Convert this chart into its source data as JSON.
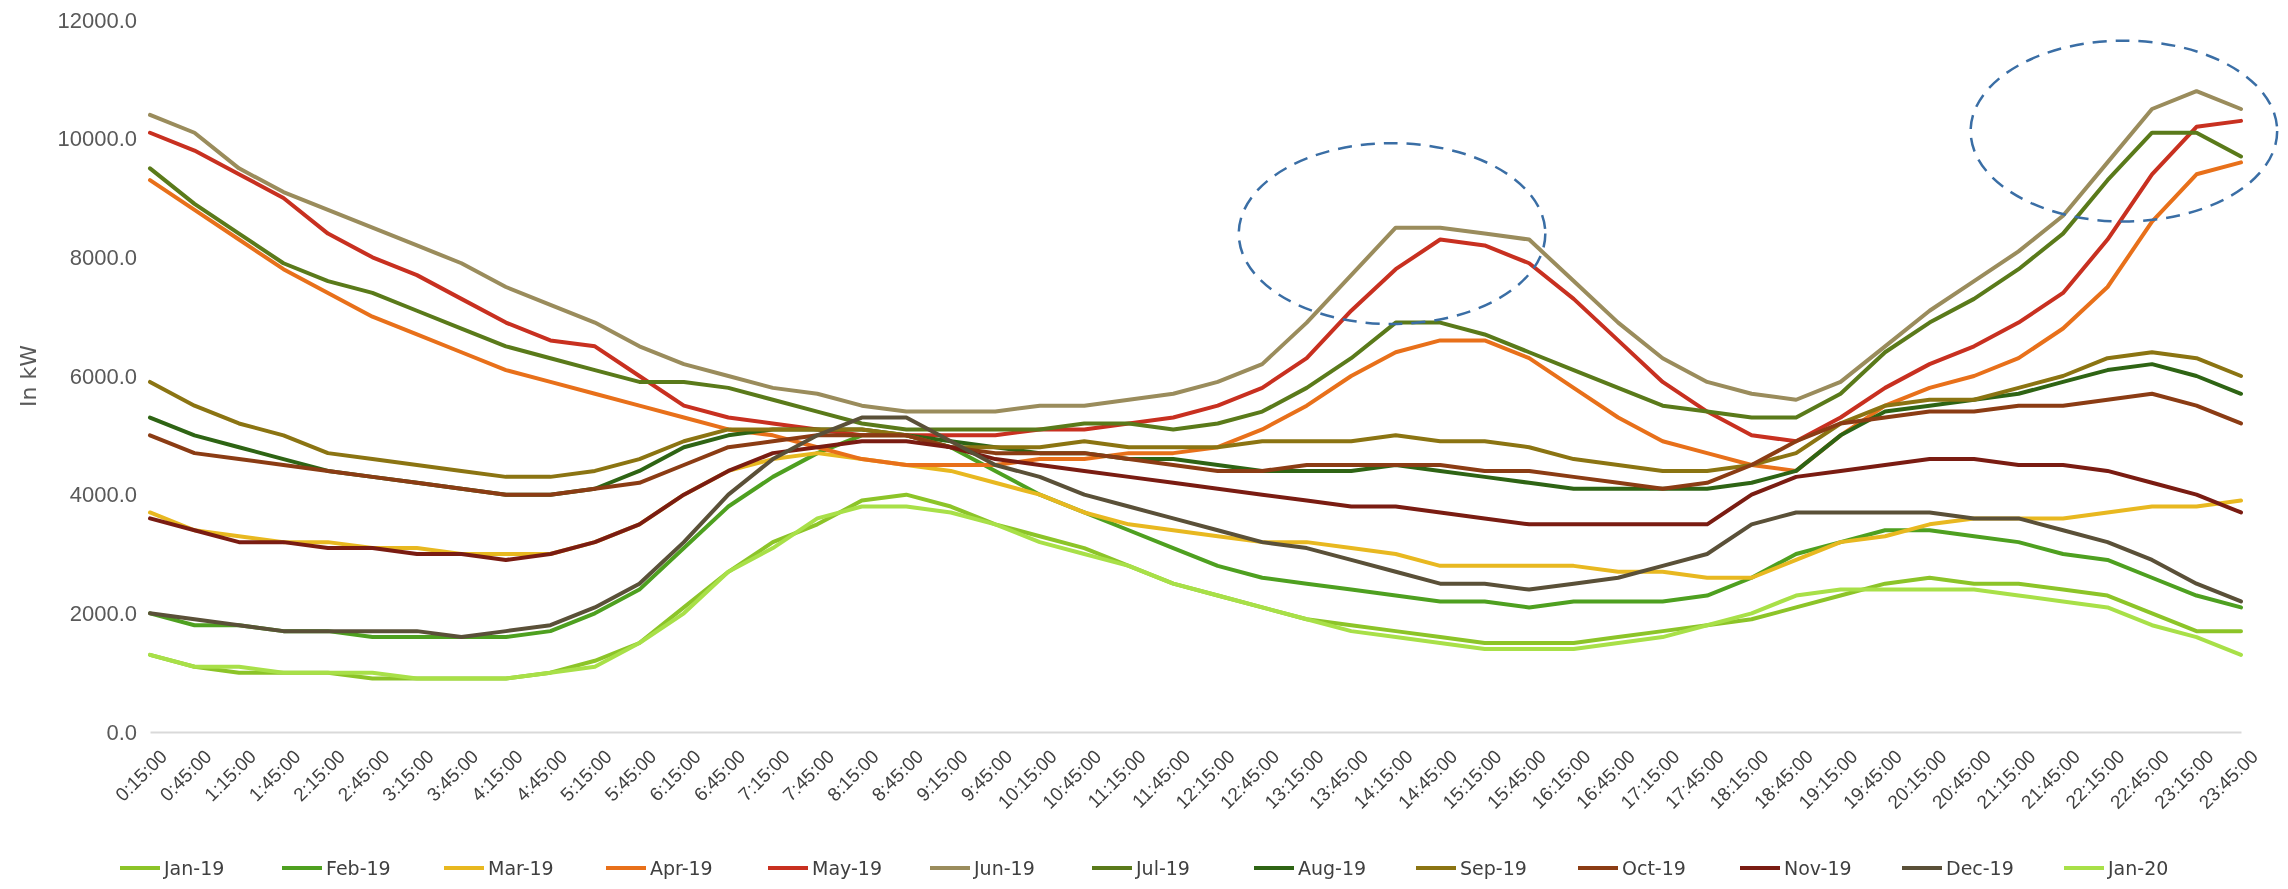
{
  "chart_data": {
    "type": "line",
    "ylabel": "In kW",
    "ylim": [
      0,
      12000
    ],
    "yticks": [
      {
        "value": 0,
        "label": "0.0"
      },
      {
        "value": 2000,
        "label": "2000.0"
      },
      {
        "value": 4000,
        "label": "4000.0"
      },
      {
        "value": 6000,
        "label": "6000.0"
      },
      {
        "value": 8000,
        "label": "8000.0"
      },
      {
        "value": 10000,
        "label": "10000.0"
      },
      {
        "value": 12000,
        "label": "12000.0"
      }
    ],
    "grid": false,
    "legend": "bottom",
    "marker": "none",
    "line_style": "solid",
    "categories": [
      "0:15:00",
      "0:45:00",
      "1:15:00",
      "1:45:00",
      "2:15:00",
      "2:45:00",
      "3:15:00",
      "3:45:00",
      "4:15:00",
      "4:45:00",
      "5:15:00",
      "5:45:00",
      "6:15:00",
      "6:45:00",
      "7:15:00",
      "7:45:00",
      "8:15:00",
      "8:45:00",
      "9:15:00",
      "9:45:00",
      "10:15:00",
      "10:45:00",
      "11:15:00",
      "11:45:00",
      "12:15:00",
      "12:45:00",
      "13:15:00",
      "13:45:00",
      "14:15:00",
      "14:45:00",
      "15:15:00",
      "15:45:00",
      "16:15:00",
      "16:45:00",
      "17:15:00",
      "17:45:00",
      "18:15:00",
      "18:45:00",
      "19:15:00",
      "19:45:00",
      "20:15:00",
      "20:45:00",
      "21:15:00",
      "21:45:00",
      "22:15:00",
      "22:45:00",
      "23:15:00",
      "23:45:00"
    ],
    "series": [
      {
        "name": "Jan-19",
        "color": "#8cc428",
        "values": [
          1300,
          1100,
          1000,
          1000,
          1000,
          900,
          900,
          900,
          900,
          1000,
          1200,
          1500,
          2100,
          2700,
          3200,
          3500,
          3900,
          4000,
          3800,
          3500,
          3300,
          3100,
          2800,
          2500,
          2300,
          2100,
          1900,
          1800,
          1700,
          1600,
          1500,
          1500,
          1500,
          1600,
          1700,
          1800,
          1900,
          2100,
          2300,
          2500,
          2600,
          2500,
          2500,
          2400,
          2300,
          2000,
          1700,
          1700
        ]
      },
      {
        "name": "Feb-19",
        "color": "#4ea020",
        "values": [
          2000,
          1800,
          1800,
          1700,
          1700,
          1600,
          1600,
          1600,
          1600,
          1700,
          2000,
          2400,
          3100,
          3800,
          4300,
          4700,
          5000,
          5000,
          4800,
          4400,
          4000,
          3700,
          3400,
          3100,
          2800,
          2600,
          2500,
          2400,
          2300,
          2200,
          2200,
          2100,
          2200,
          2200,
          2200,
          2300,
          2600,
          3000,
          3200,
          3400,
          3400,
          3300,
          3200,
          3000,
          2900,
          2600,
          2300,
          2100
        ]
      },
      {
        "name": "Mar-19",
        "color": "#e8b820",
        "values": [
          3700,
          3400,
          3300,
          3200,
          3200,
          3100,
          3100,
          3000,
          3000,
          3000,
          3200,
          3500,
          4000,
          4400,
          4600,
          4700,
          4600,
          4500,
          4400,
          4200,
          4000,
          3700,
          3500,
          3400,
          3300,
          3200,
          3200,
          3100,
          3000,
          2800,
          2800,
          2800,
          2800,
          2700,
          2700,
          2600,
          2600,
          2900,
          3200,
          3300,
          3500,
          3600,
          3600,
          3600,
          3700,
          3800,
          3800,
          3900
        ]
      },
      {
        "name": "Apr-19",
        "color": "#e8701a",
        "values": [
          9300,
          8800,
          8300,
          7800,
          7400,
          7000,
          6700,
          6400,
          6100,
          5900,
          5700,
          5500,
          5300,
          5100,
          5000,
          4800,
          4600,
          4500,
          4500,
          4500,
          4600,
          4600,
          4700,
          4700,
          4800,
          5100,
          5500,
          6000,
          6400,
          6600,
          6600,
          6300,
          5800,
          5300,
          4900,
          4700,
          4500,
          4400,
          5000,
          5500,
          5800,
          6000,
          6300,
          6800,
          7500,
          8600,
          9400,
          9600
        ]
      },
      {
        "name": "May-19",
        "color": "#c83020",
        "values": [
          10100,
          9800,
          9400,
          9000,
          8400,
          8000,
          7700,
          7300,
          6900,
          6600,
          6500,
          6000,
          5500,
          5300,
          5200,
          5100,
          5000,
          5000,
          5000,
          5000,
          5100,
          5100,
          5200,
          5300,
          5500,
          5800,
          6300,
          7100,
          7800,
          8300,
          8200,
          7900,
          7300,
          6600,
          5900,
          5400,
          5000,
          4900,
          5300,
          5800,
          6200,
          6500,
          6900,
          7400,
          8300,
          9400,
          10200,
          10300
        ]
      },
      {
        "name": "Jun-19",
        "color": "#9a8c5c",
        "values": [
          10400,
          10100,
          9500,
          9100,
          8800,
          8500,
          8200,
          7900,
          7500,
          7200,
          6900,
          6500,
          6200,
          6000,
          5800,
          5700,
          5500,
          5400,
          5400,
          5400,
          5500,
          5500,
          5600,
          5700,
          5900,
          6200,
          6900,
          7700,
          8500,
          8500,
          8400,
          8300,
          7600,
          6900,
          6300,
          5900,
          5700,
          5600,
          5900,
          6500,
          7100,
          7600,
          8100,
          8700,
          9600,
          10500,
          10800,
          10500
        ]
      },
      {
        "name": "Jul-19",
        "color": "#5a7a1a",
        "values": [
          9500,
          8900,
          8400,
          7900,
          7600,
          7400,
          7100,
          6800,
          6500,
          6300,
          6100,
          5900,
          5900,
          5800,
          5600,
          5400,
          5200,
          5100,
          5100,
          5100,
          5100,
          5200,
          5200,
          5100,
          5200,
          5400,
          5800,
          6300,
          6900,
          6900,
          6700,
          6400,
          6100,
          5800,
          5500,
          5400,
          5300,
          5300,
          5700,
          6400,
          6900,
          7300,
          7800,
          8400,
          9300,
          10100,
          10100,
          9700
        ]
      },
      {
        "name": "Aug-19",
        "color": "#2e6414",
        "values": [
          5300,
          5000,
          4800,
          4600,
          4400,
          4300,
          4200,
          4100,
          4000,
          4000,
          4100,
          4400,
          4800,
          5000,
          5100,
          5100,
          5100,
          5000,
          4900,
          4800,
          4700,
          4700,
          4600,
          4600,
          4500,
          4400,
          4400,
          4400,
          4500,
          4400,
          4300,
          4200,
          4100,
          4100,
          4100,
          4100,
          4200,
          4400,
          5000,
          5400,
          5500,
          5600,
          5700,
          5900,
          6100,
          6200,
          6000,
          5700
        ]
      },
      {
        "name": "Sep-19",
        "color": "#8b7412",
        "values": [
          5900,
          5500,
          5200,
          5000,
          4700,
          4600,
          4500,
          4400,
          4300,
          4300,
          4400,
          4600,
          4900,
          5100,
          5100,
          5100,
          5100,
          5000,
          4800,
          4800,
          4800,
          4900,
          4800,
          4800,
          4800,
          4900,
          4900,
          4900,
          5000,
          4900,
          4900,
          4800,
          4600,
          4500,
          4400,
          4400,
          4500,
          4700,
          5200,
          5500,
          5600,
          5600,
          5800,
          6000,
          6300,
          6400,
          6300,
          6000
        ]
      },
      {
        "name": "Oct-19",
        "color": "#8b3c14",
        "values": [
          5000,
          4700,
          4600,
          4500,
          4400,
          4300,
          4200,
          4100,
          4000,
          4000,
          4100,
          4200,
          4500,
          4800,
          4900,
          5000,
          5000,
          5000,
          4800,
          4700,
          4700,
          4700,
          4600,
          4500,
          4400,
          4400,
          4500,
          4500,
          4500,
          4500,
          4400,
          4400,
          4300,
          4200,
          4100,
          4200,
          4500,
          4900,
          5200,
          5300,
          5400,
          5400,
          5500,
          5500,
          5600,
          5700,
          5500,
          5200
        ]
      },
      {
        "name": "Nov-19",
        "color": "#7a1c12",
        "values": [
          3600,
          3400,
          3200,
          3200,
          3100,
          3100,
          3000,
          3000,
          2900,
          3000,
          3200,
          3500,
          4000,
          4400,
          4700,
          4800,
          4900,
          4900,
          4800,
          4600,
          4500,
          4400,
          4300,
          4200,
          4100,
          4000,
          3900,
          3800,
          3800,
          3700,
          3600,
          3500,
          3500,
          3500,
          3500,
          3500,
          4000,
          4300,
          4400,
          4500,
          4600,
          4600,
          4500,
          4500,
          4400,
          4200,
          4000,
          3700
        ]
      },
      {
        "name": "Dec-19",
        "color": "#5a5038",
        "values": [
          2000,
          1900,
          1800,
          1700,
          1700,
          1700,
          1700,
          1600,
          1700,
          1800,
          2100,
          2500,
          3200,
          4000,
          4600,
          5000,
          5300,
          5300,
          4900,
          4500,
          4300,
          4000,
          3800,
          3600,
          3400,
          3200,
          3100,
          2900,
          2700,
          2500,
          2500,
          2400,
          2500,
          2600,
          2800,
          3000,
          3500,
          3700,
          3700,
          3700,
          3700,
          3600,
          3600,
          3400,
          3200,
          2900,
          2500,
          2200
        ]
      },
      {
        "name": "Jan-20",
        "color": "#a8e048",
        "values": [
          1300,
          1100,
          1100,
          1000,
          1000,
          1000,
          900,
          900,
          900,
          1000,
          1100,
          1500,
          2000,
          2700,
          3100,
          3600,
          3800,
          3800,
          3700,
          3500,
          3200,
          3000,
          2800,
          2500,
          2300,
          2100,
          1900,
          1700,
          1600,
          1500,
          1400,
          1400,
          1400,
          1500,
          1600,
          1800,
          2000,
          2300,
          2400,
          2400,
          2400,
          2400,
          2300,
          2200,
          2100,
          1800,
          1600,
          1300
        ]
      }
    ]
  }
}
